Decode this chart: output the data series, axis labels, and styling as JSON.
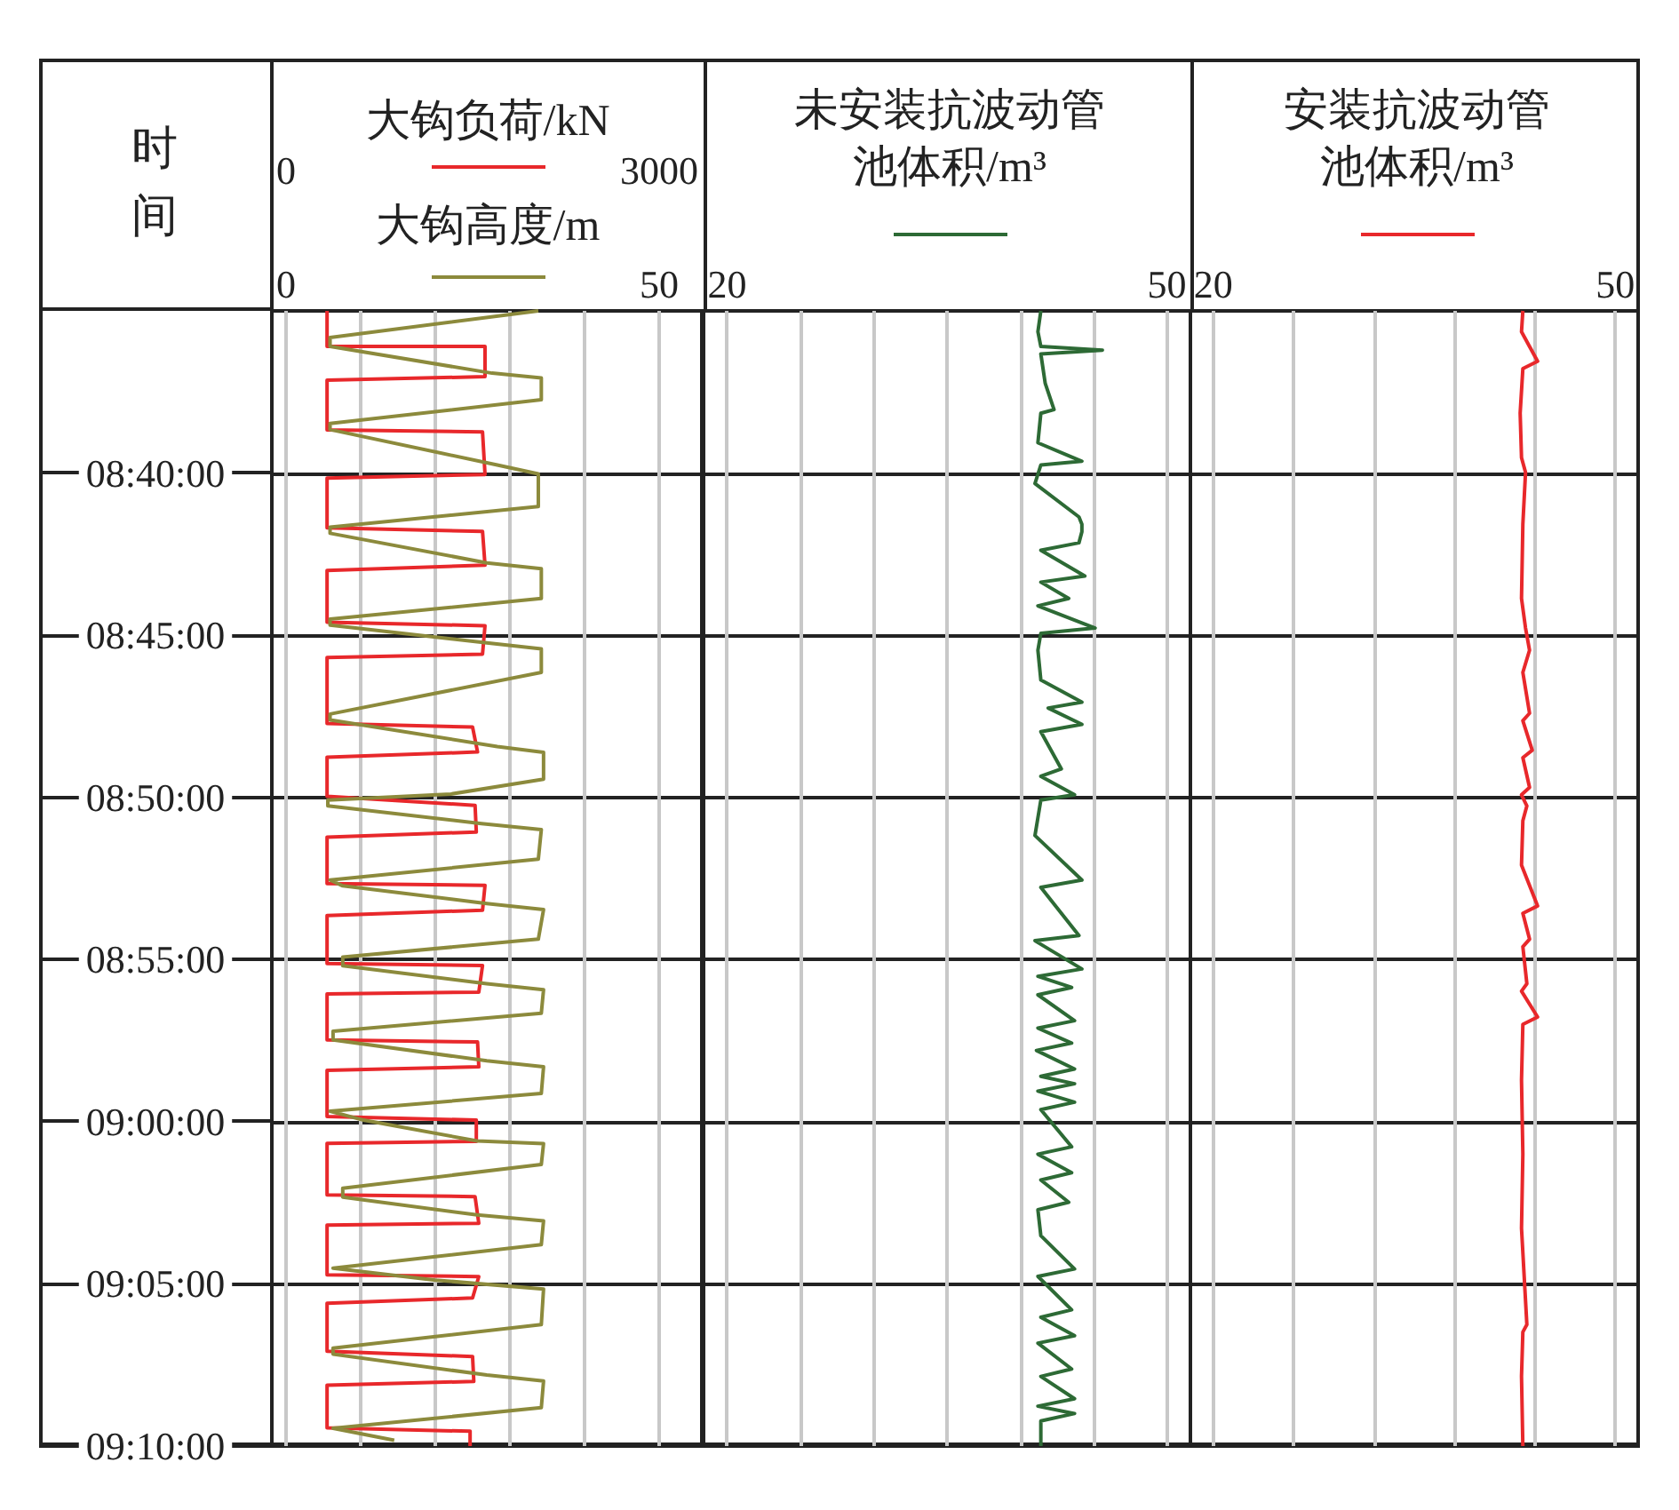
{
  "chart_data": [
    {
      "type": "line",
      "orientation": "horizontal",
      "marker": "none",
      "grid": true,
      "ylabel": "时间",
      "xlabel": "大钩负荷/kN",
      "x2label": "大钩高度/m",
      "xlim": [
        -114,
        3343
      ],
      "xticks": [
        0,
        {
          "value": 600,
          "label": null
        },
        {
          "value": 1200,
          "label": null
        },
        {
          "value": 1800,
          "label": null
        },
        {
          "value": 2400,
          "label": null
        },
        3000
      ],
      "x2lim": [
        -1.9,
        55.7
      ],
      "x2ticks": [
        0,
        50
      ],
      "ylim": [
        9.1667,
        8.5833
      ],
      "yticks": [
        {
          "value": 8.6667,
          "label": "08:40:00"
        },
        {
          "value": 8.75,
          "label": "08:45:00"
        },
        {
          "value": 8.8333,
          "label": "08:50:00"
        },
        {
          "value": 8.9167,
          "label": "08:55:00"
        },
        {
          "value": 9.0,
          "label": "09:00:00"
        },
        {
          "value": 9.0833,
          "label": "09:05:00"
        },
        {
          "value": 9.1667,
          "label": "09:10:00"
        }
      ],
      "series": [
        {
          "color": "#e8282b",
          "x": [
            8.5833,
            8.6016,
            8.6016,
            8.6171,
            8.6189,
            8.6445,
            8.6455,
            8.6674,
            8.6692,
            8.6948,
            8.6966,
            8.714,
            8.7167,
            8.7433,
            8.7451,
            8.7597,
            8.7615,
            8.7953,
            8.7972,
            8.81,
            8.8127,
            8.8328,
            8.8374,
            8.8511,
            8.8538,
            8.8776,
            8.8785,
            8.8913,
            8.8941,
            8.9187,
            8.9197,
            8.9334,
            8.9343,
            8.958,
            8.959,
            8.9718,
            8.9736,
            8.9973,
            8.9992,
            9.0101,
            9.0111,
            9.0376,
            9.0385,
            9.0522,
            9.0531,
            9.0787,
            9.0796,
            9.0906,
            9.0933,
            9.118,
            9.1207,
            9.1335,
            9.1354,
            9.1573,
            9.1591,
            9.1667
          ],
          "values": [
            330,
            330,
            1600,
            1600,
            330,
            330,
            1580,
            1600,
            330,
            330,
            1580,
            1600,
            330,
            330,
            1600,
            1580,
            330,
            330,
            1500,
            1540,
            330,
            330,
            1520,
            1530,
            330,
            330,
            1600,
            1580,
            330,
            330,
            1580,
            1550,
            330,
            330,
            1540,
            1550,
            330,
            330,
            1530,
            1530,
            330,
            330,
            1520,
            1550,
            330,
            330,
            1550,
            1500,
            330,
            330,
            1500,
            1510,
            330,
            330,
            1480,
            1480
          ]
        },
        {
          "color": "#8c8a3c",
          "axis": "x2",
          "x": [
            8.5833,
            8.597,
            8.6016,
            8.6153,
            8.6178,
            8.629,
            8.6412,
            8.6443,
            8.6625,
            8.6671,
            8.6838,
            8.6945,
            8.6976,
            8.7128,
            8.7158,
            8.7311,
            8.7417,
            8.7448,
            8.7539,
            8.757,
            8.7691,
            8.7905,
            8.7935,
            8.8072,
            8.8102,
            8.824,
            8.8316,
            8.8347,
            8.8377,
            8.8468,
            8.8499,
            8.8651,
            8.8758,
            8.8788,
            8.8879,
            8.891,
            8.9062,
            8.9154,
            8.9199,
            8.9291,
            8.9322,
            8.9443,
            8.9535,
            8.958,
            8.9687,
            8.9718,
            8.9855,
            8.9946,
            8.9992,
            9.0099,
            9.0113,
            9.022,
            9.0342,
            9.0388,
            9.0479,
            9.051,
            9.0632,
            9.0753,
            9.0814,
            9.086,
            9.1043,
            9.1164,
            9.1195,
            9.1302,
            9.1333,
            9.147,
            9.1576,
            9.1637
          ],
          "values": [
            33.8,
            5.9,
            5.9,
            27.6,
            34.2,
            34.2,
            5.9,
            5.9,
            28.3,
            33.8,
            33.8,
            5.9,
            5.9,
            26.9,
            34.2,
            34.2,
            5.9,
            5.9,
            26.9,
            34.2,
            34.2,
            5.9,
            5.9,
            28.3,
            34.5,
            34.5,
            22.1,
            5.6,
            5.6,
            26.2,
            34.2,
            33.8,
            5.9,
            7.6,
            26.9,
            34.5,
            33.8,
            7.6,
            7.6,
            26.9,
            34.5,
            34.2,
            6.3,
            6.3,
            26.9,
            34.5,
            34.2,
            5.9,
            10.4,
            25.6,
            34.5,
            34.2,
            7.6,
            7.6,
            25.6,
            34.5,
            34.2,
            6.3,
            20.0,
            34.5,
            34.2,
            6.3,
            6.3,
            26.9,
            34.5,
            34.2,
            6.3,
            14.5
          ]
        }
      ]
    },
    {
      "type": "line",
      "orientation": "horizontal",
      "marker": "none",
      "grid": true,
      "tick_labels": "x",
      "xlabel": "未安装抗波动管池体积/m³",
      "xlim": [
        18.4,
        51.6
      ],
      "xticks": [
        20,
        {
          "value": 25,
          "label": null
        },
        {
          "value": 30,
          "label": null
        },
        {
          "value": 35,
          "label": null
        },
        {
          "value": 40,
          "label": null
        },
        {
          "value": 45,
          "label": null
        },
        50
      ],
      "ylim": [
        9.1667,
        8.5833
      ],
      "yticks": [
        {
          "value": 8.6667,
          "label": null
        },
        {
          "value": 8.75,
          "label": null
        },
        {
          "value": 8.8333,
          "label": null
        },
        {
          "value": 8.9167,
          "label": null
        },
        {
          "value": 9.0,
          "label": null
        },
        {
          "value": 9.0833,
          "label": null
        },
        {
          "value": 9.1667,
          "label": null
        }
      ],
      "series": [
        {
          "color": "#2d6a35",
          "x": [
            8.5833,
            8.594,
            8.6016,
            8.6035,
            8.6054,
            8.6206,
            8.634,
            8.6359,
            8.6511,
            8.6606,
            8.6625,
            8.672,
            8.6892,
            8.693,
            8.6968,
            8.7025,
            8.7063,
            8.7196,
            8.7227,
            8.7311,
            8.7349,
            8.7463,
            8.749,
            8.7577,
            8.773,
            8.7844,
            8.7874,
            8.7958,
            8.7996,
            8.8187,
            8.8225,
            8.832,
            8.8347,
            8.8529,
            8.8758,
            8.8796,
            8.9043,
            8.907,
            8.9215,
            8.9253,
            8.931,
            8.9348,
            8.9481,
            8.9519,
            8.9596,
            8.9634,
            8.9729,
            8.9767,
            8.9805,
            8.9843,
            8.99,
            8.9938,
            9.0129,
            9.0167,
            9.0262,
            9.03,
            9.0414,
            9.0453,
            9.0586,
            9.0757,
            9.0795,
            9.0967,
            9.1005,
            9.11,
            9.1138,
            9.1271,
            9.1309,
            9.1424,
            9.1462,
            9.15,
            9.1538,
            9.1667
          ],
          "values": [
            41.4,
            41.2,
            41.4,
            45.6,
            41.4,
            41.7,
            42.3,
            41.4,
            41.2,
            44.2,
            41.4,
            41.0,
            44.0,
            44.2,
            44.2,
            44.0,
            41.4,
            44.4,
            41.4,
            43.3,
            41.2,
            45.1,
            41.4,
            41.2,
            41.4,
            44.2,
            41.9,
            44.2,
            41.4,
            42.8,
            41.4,
            43.7,
            41.4,
            41.0,
            44.2,
            41.4,
            44.0,
            41.0,
            44.2,
            41.2,
            43.5,
            41.2,
            43.7,
            41.2,
            43.5,
            41.1,
            43.7,
            41.4,
            43.7,
            41.2,
            43.7,
            41.4,
            43.5,
            41.2,
            43.5,
            41.4,
            43.3,
            41.2,
            41.4,
            43.7,
            41.2,
            43.5,
            41.4,
            43.7,
            41.2,
            43.5,
            41.4,
            43.7,
            41.2,
            43.7,
            41.4,
            41.4
          ]
        }
      ]
    },
    {
      "type": "line",
      "orientation": "horizontal",
      "marker": "none",
      "grid": true,
      "tick_labels": "x",
      "xlabel": "安装抗波动管池体积/m³",
      "xlim": [
        18.3,
        51.7
      ],
      "xticks": [
        20,
        {
          "value": 26,
          "label": null
        },
        {
          "value": 32,
          "label": null
        },
        {
          "value": 38,
          "label": null
        },
        {
          "value": 44,
          "label": null
        },
        50
      ],
      "ylim": [
        9.1667,
        8.5833
      ],
      "yticks": [
        {
          "value": 8.6667,
          "label": null
        },
        {
          "value": 8.75,
          "label": null
        },
        {
          "value": 8.8333,
          "label": null
        },
        {
          "value": 8.9167,
          "label": null
        },
        {
          "value": 9.0,
          "label": null
        },
        {
          "value": 9.0833,
          "label": null
        },
        {
          "value": 9.1667,
          "label": null
        }
      ],
      "series": [
        {
          "color": "#e8282b",
          "x": [
            8.5833,
            8.594,
            8.6092,
            8.613,
            8.6359,
            8.6587,
            8.6663,
            8.693,
            8.7311,
            8.7463,
            8.7577,
            8.7691,
            8.7901,
            8.7939,
            8.8091,
            8.8129,
            8.8282,
            8.832,
            8.8377,
            8.8453,
            8.8682,
            8.8891,
            8.8929,
            8.9062,
            8.9101,
            8.9291,
            8.9329,
            8.9462,
            8.95,
            8.9786,
            9.0167,
            9.0548,
            9.1043,
            9.1081,
            9.1309,
            9.1667
          ],
          "values": [
            43.1,
            43.0,
            44.2,
            43.1,
            42.9,
            43.0,
            43.3,
            43.1,
            43.0,
            43.3,
            43.6,
            43.1,
            43.6,
            43.1,
            43.8,
            43.1,
            43.6,
            43.0,
            43.4,
            43.1,
            43.0,
            44.2,
            43.1,
            43.6,
            43.1,
            43.4,
            43.0,
            44.2,
            43.1,
            43.0,
            43.1,
            43.0,
            43.4,
            43.1,
            43.0,
            43.1
          ]
        }
      ]
    }
  ]
}
